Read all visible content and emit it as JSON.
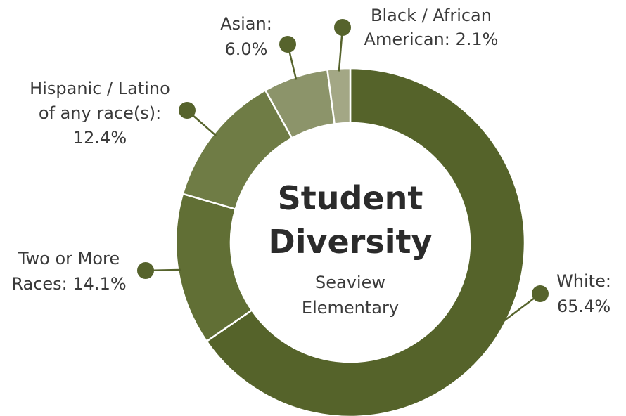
{
  "chart_data": {
    "type": "pie",
    "variant": "donut",
    "title": "Student Diversity",
    "subtitle": "Seaview Elementary",
    "categories": [
      "White",
      "Two or More Races",
      "Hispanic / Latino of any race(s)",
      "Asian",
      "Black / African American"
    ],
    "values": [
      65.4,
      14.1,
      12.4,
      6.0,
      2.1
    ],
    "unit": "%",
    "labels": [
      [
        "White:",
        "65.4%"
      ],
      [
        "Two or More",
        "Races: 14.1%"
      ],
      [
        "Hispanic / Latino",
        "of any race(s):",
        "12.4%"
      ],
      [
        "Asian:",
        "6.0%"
      ],
      [
        "Black / African",
        "American: 2.1%"
      ]
    ],
    "colors": [
      "#55632a",
      "#616f35",
      "#6f7c45",
      "#8c946a",
      "#a3a785"
    ],
    "marker_color": "#56632c",
    "legend": "none"
  }
}
